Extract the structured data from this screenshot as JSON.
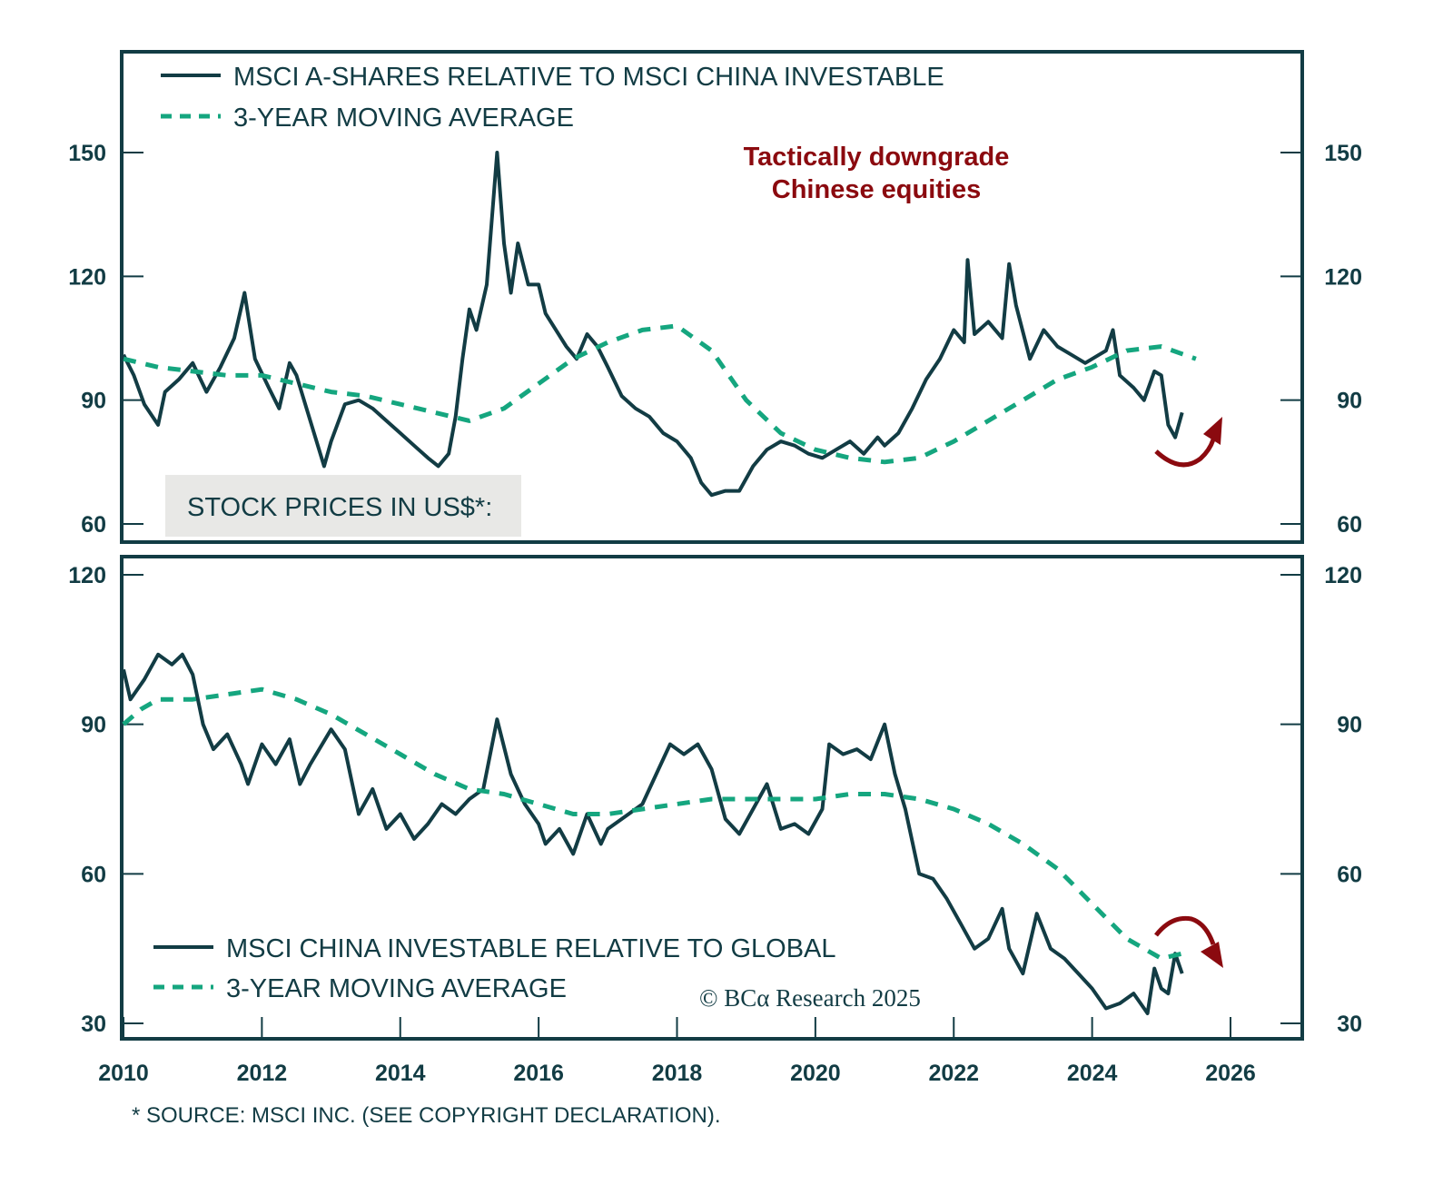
{
  "chart_data": [
    {
      "type": "line",
      "panel": "top",
      "title": "STOCK PRICES IN US$*:",
      "annotation": [
        "Tactically downgrade",
        "Chinese equities"
      ],
      "annotation_arrow": "up",
      "xlabel": "",
      "ylabel": "",
      "xlim": [
        2010,
        2026.5
      ],
      "ylim": [
        58,
        155
      ],
      "yticks": [
        60,
        90,
        120,
        150
      ],
      "xticks": [
        2010,
        2012,
        2014,
        2016,
        2018,
        2020,
        2022,
        2024,
        2026
      ],
      "legend_position": "top-left",
      "series": [
        {
          "name": "MSCI A-SHARES RELATIVE TO MSCI CHINA INVESTABLE",
          "style": "solid",
          "color": "#123c44",
          "x": [
            2010.0,
            2010.15,
            2010.3,
            2010.5,
            2010.6,
            2010.8,
            2011.0,
            2011.2,
            2011.4,
            2011.6,
            2011.75,
            2011.9,
            2012.1,
            2012.25,
            2012.4,
            2012.5,
            2012.7,
            2012.9,
            2013.0,
            2013.2,
            2013.4,
            2013.6,
            2013.8,
            2014.0,
            2014.2,
            2014.4,
            2014.55,
            2014.7,
            2014.8,
            2014.9,
            2015.0,
            2015.1,
            2015.25,
            2015.4,
            2015.5,
            2015.6,
            2015.7,
            2015.85,
            2016.0,
            2016.1,
            2016.25,
            2016.4,
            2016.55,
            2016.7,
            2016.85,
            2017.0,
            2017.2,
            2017.4,
            2017.6,
            2017.8,
            2018.0,
            2018.2,
            2018.35,
            2018.5,
            2018.7,
            2018.9,
            2019.1,
            2019.3,
            2019.5,
            2019.7,
            2019.9,
            2020.1,
            2020.3,
            2020.5,
            2020.7,
            2020.9,
            2021.0,
            2021.2,
            2021.4,
            2021.6,
            2021.8,
            2022.0,
            2022.15,
            2022.2,
            2022.3,
            2022.5,
            2022.7,
            2022.8,
            2022.9,
            2023.1,
            2023.3,
            2023.5,
            2023.7,
            2023.9,
            2024.1,
            2024.2,
            2024.3,
            2024.4,
            2024.6,
            2024.75,
            2024.9,
            2025.0,
            2025.1,
            2025.2,
            2025.3
          ],
          "values": [
            101,
            96,
            89,
            84,
            92,
            95,
            99,
            92,
            98,
            105,
            116,
            100,
            93,
            88,
            99,
            96,
            85,
            74,
            80,
            89,
            90,
            88,
            85,
            82,
            79,
            76,
            74,
            77,
            86,
            100,
            112,
            107,
            118,
            150,
            128,
            116,
            128,
            118,
            118,
            111,
            107,
            103,
            100,
            106,
            103,
            98,
            91,
            88,
            86,
            82,
            80,
            76,
            70,
            67,
            68,
            68,
            74,
            78,
            80,
            79,
            77,
            76,
            78,
            80,
            77,
            81,
            79,
            82,
            88,
            95,
            100,
            107,
            104,
            124,
            106,
            109,
            105,
            123,
            113,
            100,
            107,
            103,
            101,
            99,
            101,
            102,
            107,
            96,
            93,
            90,
            97,
            96,
            84,
            81,
            87
          ]
        },
        {
          "name": "3-YEAR MOVING AVERAGE",
          "style": "dashed",
          "color": "#15a67f",
          "x": [
            2010.0,
            2010.5,
            2011.0,
            2011.5,
            2012.0,
            2012.5,
            2013.0,
            2013.5,
            2014.0,
            2014.5,
            2015.0,
            2015.5,
            2016.0,
            2016.5,
            2017.0,
            2017.5,
            2018.0,
            2018.5,
            2019.0,
            2019.5,
            2020.0,
            2020.5,
            2021.0,
            2021.5,
            2022.0,
            2022.5,
            2023.0,
            2023.5,
            2024.0,
            2024.5,
            2025.0,
            2025.5
          ],
          "values": [
            100,
            98,
            97,
            96,
            96,
            94,
            92,
            91,
            89,
            87,
            85,
            88,
            94,
            100,
            104,
            107,
            108,
            102,
            90,
            82,
            78,
            76,
            75,
            76,
            80,
            85,
            90,
            95,
            98,
            102,
            103,
            100
          ]
        }
      ]
    },
    {
      "type": "line",
      "panel": "bottom",
      "title": "",
      "annotation_arrow": "down",
      "xlabel": "",
      "ylabel": "",
      "xlim": [
        2010,
        2026.5
      ],
      "ylim": [
        27,
        123
      ],
      "yticks": [
        30,
        60,
        90,
        120
      ],
      "xticks": [
        2010,
        2012,
        2014,
        2016,
        2018,
        2020,
        2022,
        2024,
        2026
      ],
      "legend_position": "bottom-left",
      "series": [
        {
          "name": "MSCI CHINA INVESTABLE RELATIVE TO GLOBAL",
          "style": "solid",
          "color": "#123c44",
          "x": [
            2010.0,
            2010.1,
            2010.3,
            2010.5,
            2010.7,
            2010.85,
            2011.0,
            2011.15,
            2011.3,
            2011.5,
            2011.7,
            2011.8,
            2012.0,
            2012.2,
            2012.4,
            2012.55,
            2012.7,
            2013.0,
            2013.2,
            2013.4,
            2013.6,
            2013.8,
            2014.0,
            2014.2,
            2014.4,
            2014.6,
            2014.8,
            2015.0,
            2015.2,
            2015.4,
            2015.6,
            2015.8,
            2016.0,
            2016.1,
            2016.3,
            2016.5,
            2016.7,
            2016.9,
            2017.0,
            2017.3,
            2017.5,
            2017.7,
            2017.9,
            2018.1,
            2018.3,
            2018.5,
            2018.7,
            2018.9,
            2019.1,
            2019.3,
            2019.5,
            2019.7,
            2019.9,
            2020.1,
            2020.2,
            2020.4,
            2020.6,
            2020.8,
            2021.0,
            2021.15,
            2021.3,
            2021.5,
            2021.7,
            2021.9,
            2022.1,
            2022.3,
            2022.5,
            2022.7,
            2022.8,
            2023.0,
            2023.2,
            2023.4,
            2023.6,
            2023.8,
            2024.0,
            2024.2,
            2024.4,
            2024.6,
            2024.75,
            2024.8,
            2024.9,
            2025.0,
            2025.1,
            2025.2,
            2025.3
          ],
          "values": [
            101,
            95,
            99,
            104,
            102,
            104,
            100,
            90,
            85,
            88,
            82,
            78,
            86,
            82,
            87,
            78,
            82,
            89,
            85,
            72,
            77,
            69,
            72,
            67,
            70,
            74,
            72,
            75,
            77,
            91,
            80,
            74,
            70,
            66,
            69,
            64,
            72,
            66,
            69,
            72,
            74,
            80,
            86,
            84,
            86,
            81,
            71,
            68,
            73,
            78,
            69,
            70,
            68,
            73,
            86,
            84,
            85,
            83,
            90,
            80,
            73,
            60,
            59,
            55,
            50,
            45,
            47,
            53,
            45,
            40,
            52,
            45,
            43,
            40,
            37,
            33,
            34,
            36,
            33,
            32,
            41,
            37,
            36,
            44,
            40
          ]
        },
        {
          "name": "3-YEAR MOVING AVERAGE",
          "style": "dashed",
          "color": "#15a67f",
          "x": [
            2010.0,
            2010.25,
            2010.5,
            2011.0,
            2011.5,
            2012.0,
            2012.5,
            2013.0,
            2013.5,
            2014.0,
            2014.5,
            2015.0,
            2015.5,
            2016.0,
            2016.5,
            2017.0,
            2017.5,
            2018.0,
            2018.5,
            2019.0,
            2019.5,
            2020.0,
            2020.5,
            2021.0,
            2021.5,
            2022.0,
            2022.5,
            2023.0,
            2023.5,
            2024.0,
            2024.5,
            2025.0,
            2025.3
          ],
          "values": [
            90,
            93,
            95,
            95,
            96,
            97,
            95,
            92,
            88,
            84,
            80,
            77,
            76,
            74,
            72,
            72,
            73,
            74,
            75,
            75,
            75,
            75,
            76,
            76,
            75,
            73,
            70,
            66,
            61,
            54,
            47,
            43,
            44
          ]
        }
      ]
    }
  ],
  "top_panel": {
    "legend": {
      "solid_label": "MSCI A-SHARES RELATIVE TO MSCI CHINA INVESTABLE",
      "dashed_label": "3-YEAR MOVING AVERAGE"
    },
    "subtitle_box": "STOCK PRICES IN US$*:",
    "annotation_line1": "Tactically downgrade",
    "annotation_line2": "Chinese equities",
    "yticks": [
      "150",
      "120",
      "90",
      "60"
    ]
  },
  "bottom_panel": {
    "legend": {
      "solid_label": "MSCI CHINA INVESTABLE RELATIVE TO GLOBAL",
      "dashed_label": "3-YEAR MOVING AVERAGE"
    },
    "copyright": "© BCα Research 2025",
    "yticks": [
      "120",
      "90",
      "60",
      "30"
    ]
  },
  "xticks": [
    "2010",
    "2012",
    "2014",
    "2016",
    "2018",
    "2020",
    "2022",
    "2024",
    "2026"
  ],
  "footnote": "* SOURCE: MSCI INC. (SEE COPYRIGHT DECLARATION).",
  "colors": {
    "axis": "#123c44",
    "line": "#123c44",
    "moving_average": "#15a67f",
    "annotation": "#8b0a0f",
    "subtitle_box_bg": "#e8e8e6"
  }
}
